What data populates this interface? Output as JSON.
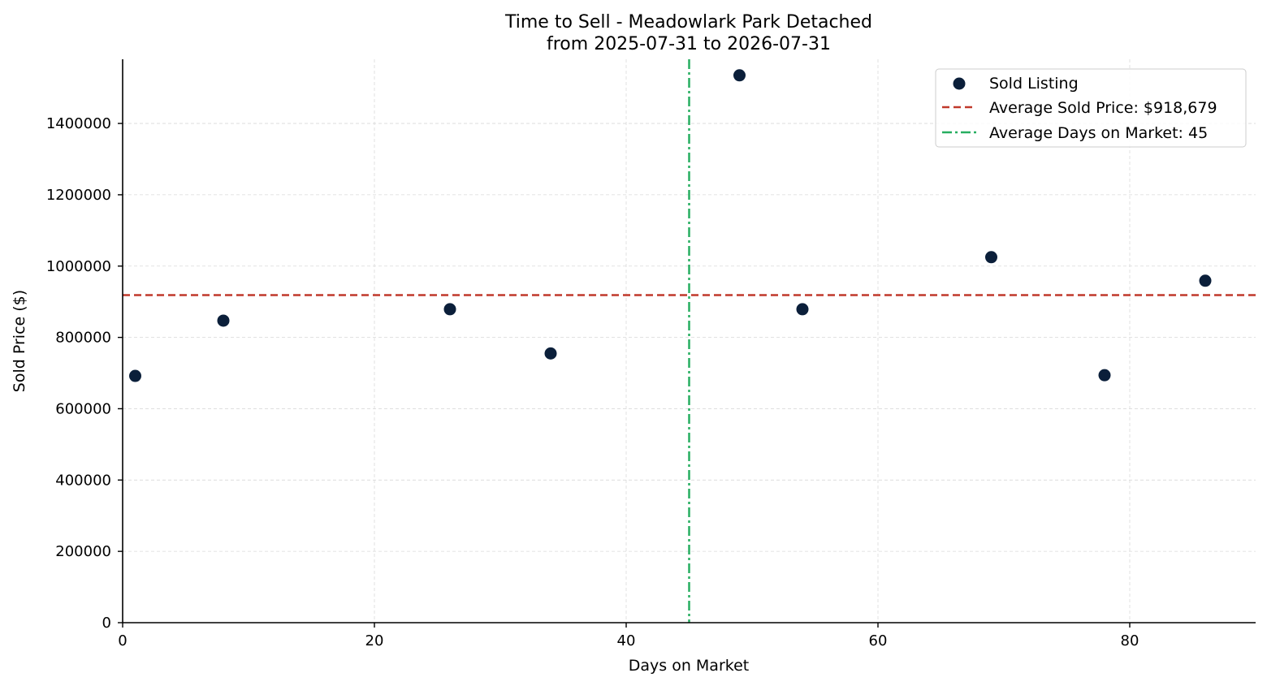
{
  "chart_data": {
    "type": "scatter",
    "title_line1": "Time to Sell - Meadowlark Park Detached",
    "title_line2": "from 2025-07-31 to 2026-07-31",
    "xlabel": "Days on Market",
    "ylabel": "Sold Price ($)",
    "xlim": [
      0,
      90
    ],
    "ylim": [
      0,
      1580000
    ],
    "xticks": [
      0,
      20,
      40,
      60,
      80
    ],
    "yticks": [
      0,
      200000,
      400000,
      600000,
      800000,
      1000000,
      1200000,
      1400000
    ],
    "grid": true,
    "legend_position": "top-right",
    "series": [
      {
        "name": "Sold Listing",
        "color": "#0b1f3a",
        "points": [
          {
            "x": 1,
            "y": 692000
          },
          {
            "x": 8,
            "y": 847000
          },
          {
            "x": 26,
            "y": 879000
          },
          {
            "x": 34,
            "y": 755000
          },
          {
            "x": 49,
            "y": 1535000
          },
          {
            "x": 54,
            "y": 879000
          },
          {
            "x": 69,
            "y": 1025000
          },
          {
            "x": 78,
            "y": 694000
          },
          {
            "x": 86,
            "y": 959000
          }
        ]
      }
    ],
    "reference_lines": [
      {
        "name": "Average Sold Price: $918,679",
        "orientation": "horizontal",
        "value": 918679,
        "color": "#c0392b",
        "style": "dashed"
      },
      {
        "name": "Average Days on Market: 45",
        "orientation": "vertical",
        "value": 45,
        "color": "#27ae60",
        "style": "dashdot"
      }
    ]
  }
}
